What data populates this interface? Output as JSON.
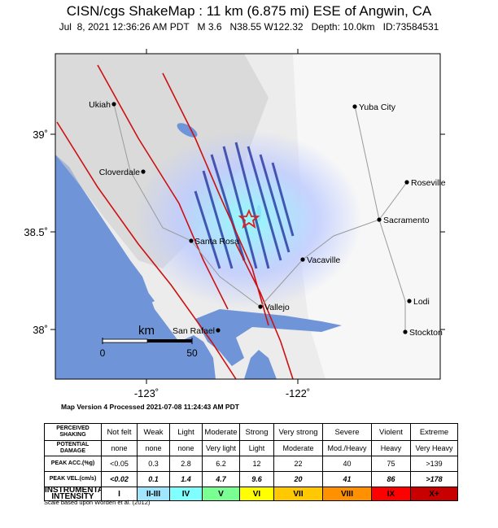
{
  "header": {
    "title": "CISN/cgs ShakeMap : 11 km (6.875 mi) ESE of Angwin, CA",
    "subtitle": "Jul  8, 2021 12:36:26 AM PDT   M 3.6   N38.55 W122.32   Depth: 10.0km   ID:73584531"
  },
  "map": {
    "lat_labels": [
      "39˚",
      "38.5˚",
      "38˚"
    ],
    "lon_labels": [
      "-123˚",
      "-122˚"
    ],
    "cities": [
      {
        "name": "Ukiah"
      },
      {
        "name": "Yuba City"
      },
      {
        "name": "Cloverdale"
      },
      {
        "name": "Roseville"
      },
      {
        "name": "Sacramento"
      },
      {
        "name": "Santa Rosa"
      },
      {
        "name": "Vacaville"
      },
      {
        "name": "Vallejo"
      },
      {
        "name": "Lodi"
      },
      {
        "name": "San Rafael"
      },
      {
        "name": "Stockton"
      }
    ],
    "scale_bar": {
      "unit": "km",
      "start": "0",
      "end": "50"
    },
    "colors": {
      "ocean": "#6f95d8",
      "land": "#f1f1f1",
      "fault": "#cc1111",
      "epicenter": "#e02020"
    }
  },
  "map_version": "Map Version 4 Processed 2021-07-08 11:24:43 AM PDT",
  "legend": {
    "rows": [
      {
        "head": "PERCEIVED SHAKING",
        "values": [
          "Not felt",
          "Weak",
          "Light",
          "Moderate",
          "Strong",
          "Very strong",
          "Severe",
          "Violent",
          "Extreme"
        ]
      },
      {
        "head": "POTENTIAL DAMAGE",
        "values": [
          "none",
          "none",
          "none",
          "Very light",
          "Light",
          "Moderate",
          "Mod./Heavy",
          "Heavy",
          "Very Heavy"
        ]
      },
      {
        "head": "PEAK ACC.(%g)",
        "values": [
          "<0.05",
          "0.3",
          "2.8",
          "6.2",
          "12",
          "22",
          "40",
          "75",
          ">139"
        ]
      },
      {
        "head": "PEAK VEL.(cm/s)",
        "values": [
          "<0.02",
          "0.1",
          "1.4",
          "4.7",
          "9.6",
          "20",
          "41",
          "86",
          ">178"
        ]
      },
      {
        "head": "INSTRUMENTAL INTENSITY",
        "values": [
          "I",
          "II-III",
          "IV",
          "V",
          "VI",
          "VII",
          "VIII",
          "IX",
          "X+"
        ]
      }
    ],
    "intensity_colors": [
      "#ffffff",
      "#bfccff",
      "#a0e6ff",
      "#80ffff",
      "#7aff93",
      "#ffff00",
      "#ffc800",
      "#ff9100",
      "#ff0000",
      "#c80000"
    ]
  },
  "footnote": "Scale based upon Worden et al. (2012)"
}
